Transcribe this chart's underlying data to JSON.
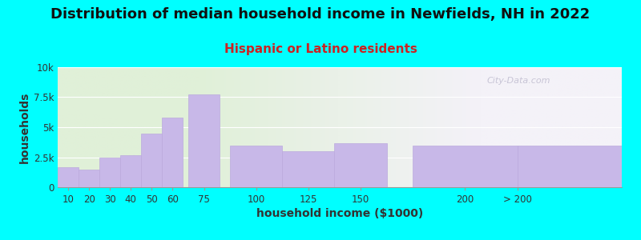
{
  "title": "Distribution of median household income in Newfields, NH in 2022",
  "subtitle": "Hispanic or Latino residents",
  "xlabel": "household income ($1000)",
  "ylabel": "households",
  "bar_labels": [
    "10",
    "20",
    "30",
    "40",
    "50",
    "60",
    "75",
    "100",
    "125",
    "150",
    "200",
    "> 200"
  ],
  "bar_values": [
    1700,
    1500,
    2500,
    2700,
    4500,
    5800,
    7700,
    3500,
    3000,
    3700,
    3500,
    3500
  ],
  "bar_lefts": [
    5,
    15,
    25,
    35,
    45,
    55,
    67.5,
    87.5,
    112.5,
    137.5,
    175,
    225
  ],
  "bar_widths": [
    10,
    10,
    10,
    10,
    10,
    10,
    15,
    25,
    25,
    25,
    50,
    50
  ],
  "bar_color": "#C8B8E8",
  "bar_edgecolor": "#BBAADD",
  "ylim": [
    0,
    10000
  ],
  "yticks": [
    0,
    2500,
    5000,
    7500,
    10000
  ],
  "ytick_labels": [
    "0",
    "2.5k",
    "5k",
    "7.5k",
    "10k"
  ],
  "xtick_positions": [
    10,
    20,
    30,
    40,
    50,
    60,
    75,
    100,
    125,
    150,
    200,
    225
  ],
  "xtick_labels": [
    "10",
    "20",
    "30",
    "40",
    "50",
    "60",
    "75",
    "100",
    "125",
    "150",
    "200",
    "> 200"
  ],
  "xlim": [
    5,
    275
  ],
  "bg_outer": "#00FFFF",
  "bg_plot_left": "#E0F0D8",
  "bg_plot_right": "#F4F2F8",
  "title_fontsize": 13,
  "subtitle_fontsize": 11,
  "subtitle_color": "#CC2222",
  "watermark": "City-Data.com",
  "watermark_color": "#C0BDD0"
}
